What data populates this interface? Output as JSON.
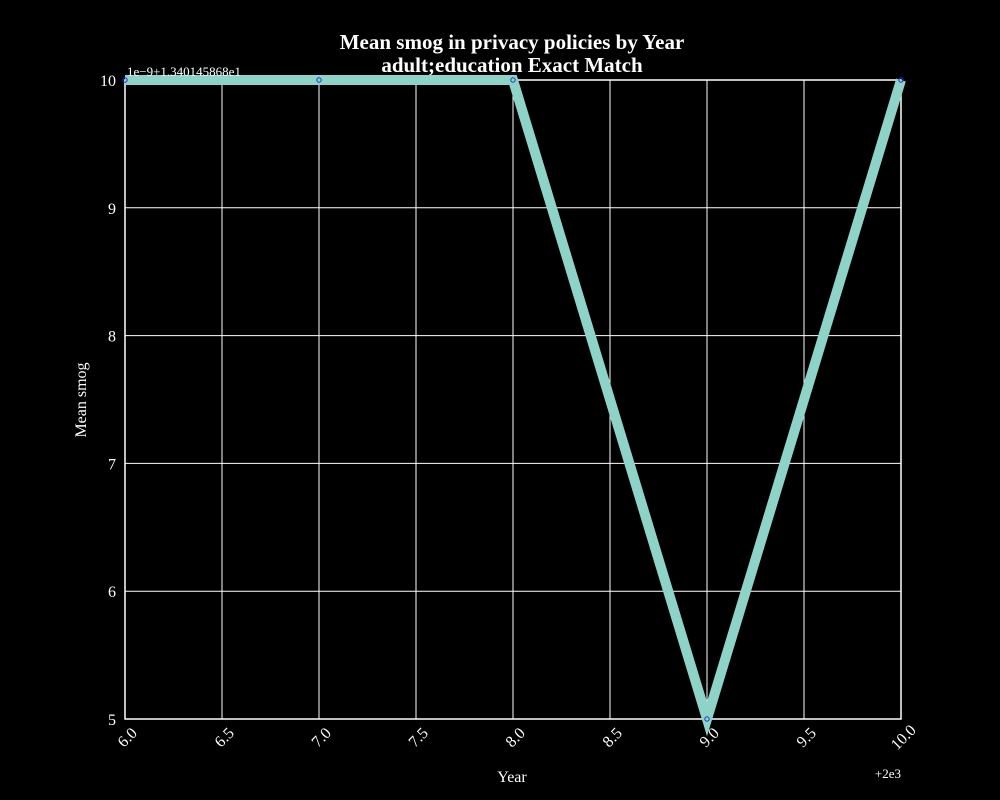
{
  "chart_data": {
    "type": "line",
    "title": "Mean smog in privacy policies by Year",
    "subtitle": "adult;education Exact Match",
    "xlabel": "Year",
    "ylabel": "Mean smog",
    "x_offset_label": "+2e3",
    "y_offset_label": "1e−9+1.340145868e1",
    "x": [
      6.0,
      7.0,
      8.0,
      9.0,
      10.0
    ],
    "series": [
      {
        "values": [
          10,
          10,
          10,
          5,
          10
        ]
      }
    ],
    "xlim": [
      6.0,
      10.0
    ],
    "ylim": [
      5,
      10
    ],
    "x_ticks": [
      "6.0",
      "6.5",
      "7.0",
      "7.5",
      "8.0",
      "8.5",
      "9.0",
      "9.5",
      "10.0"
    ],
    "y_ticks": [
      "5",
      "6",
      "7",
      "8",
      "9",
      "10"
    ],
    "grid": true,
    "colors": {
      "background": "#000000",
      "line": "#8dd3c7",
      "marker": "#2233cc",
      "grid": "#ffffff",
      "text": "#ffffff"
    }
  }
}
